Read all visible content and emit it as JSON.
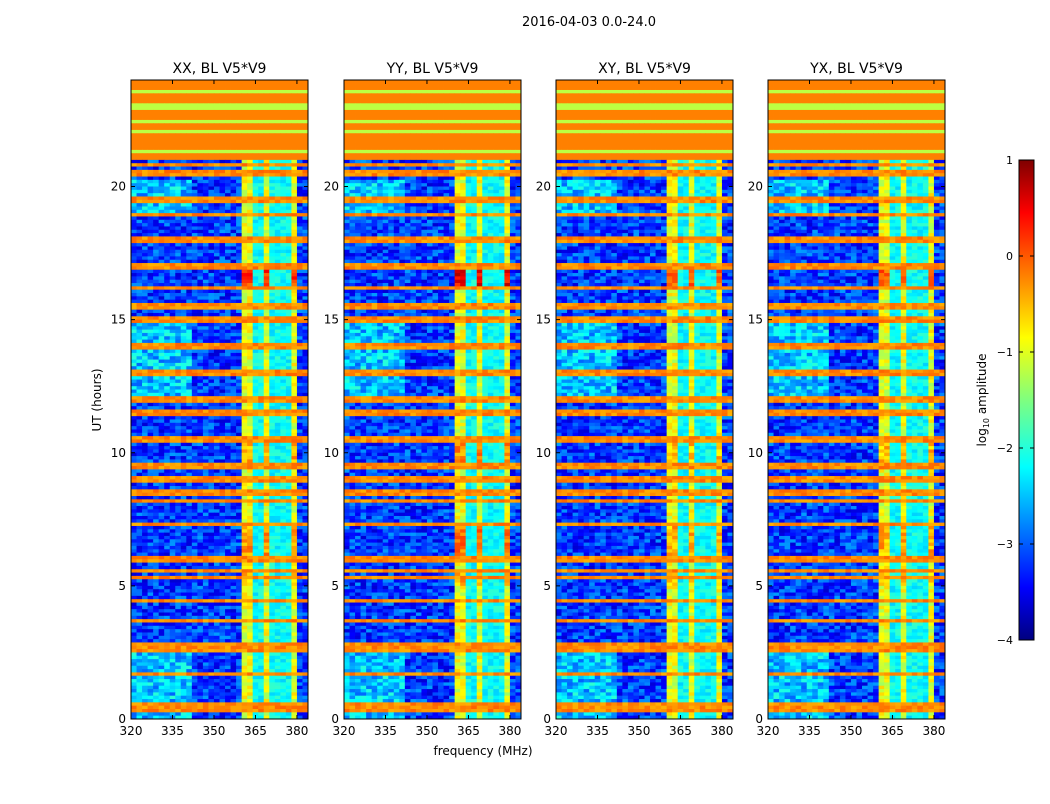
{
  "chart_data": {
    "type": "heatmap",
    "title": "2016-04-03 0.0-24.0",
    "xlabel": "frequency (MHz)",
    "ylabel": "UT (hours)",
    "xlim": [
      320,
      384
    ],
    "ylim": [
      0,
      24
    ],
    "xticks": [
      320,
      335,
      350,
      365,
      380
    ],
    "yticks": [
      0,
      5,
      10,
      15,
      20
    ],
    "colormap": "jet",
    "colorbar": {
      "label_prefix": "log",
      "label_sub": "10",
      "label_suffix": " amplitude",
      "vmin": -4,
      "vmax": 1,
      "ticks": [
        1,
        0,
        -1,
        -2,
        -3,
        -4
      ],
      "tick_labels": [
        "1",
        "0",
        "−1",
        "−2",
        "−3",
        "−4"
      ]
    },
    "panels": [
      {
        "title": "XX, BL V5*V9",
        "event_boost": 0.5
      },
      {
        "title": "YY, BL V5*V9",
        "event_boost": 0.8
      },
      {
        "title": "XY, BL V5*V9",
        "event_boost": 0.3
      },
      {
        "title": "YX, BL V5*V9",
        "event_boost": 0.35
      }
    ],
    "model": {
      "background_log_amplitude": -3.1,
      "signal_band_mhz": [
        360,
        379
      ],
      "signal_band_log_amplitude": -1.0,
      "signal_band_gaps_mhz": [
        [
          366,
          367
        ],
        [
          371,
          372
        ],
        [
          375.5,
          376.5
        ]
      ],
      "flagged_hours": [
        21,
        24
      ],
      "flagged_log_amplitude": -0.25,
      "flagged_green_rows_hours": [
        20.3,
        21.3,
        22.1,
        22.4,
        23.0,
        23.6
      ],
      "rfi_rows_hours": [
        0.3,
        0.5,
        1.7,
        2.6,
        2.75,
        3.7,
        4.4,
        5.3,
        5.55,
        6.0,
        7.3,
        8.2,
        8.5,
        9.0,
        9.5,
        10.5,
        11.5,
        12.0,
        13.0,
        14.0,
        15.0,
        15.5,
        16.2,
        17.0,
        18.0,
        18.9,
        19.5,
        20.5,
        20.8
      ],
      "events": [
        {
          "hours": [
            16.3,
            17.0
          ],
          "delta": 1.1
        },
        {
          "hours": [
            6.0,
            7.2
          ],
          "delta": 0.6
        },
        {
          "hours": [
            9.5,
            10.5
          ],
          "delta": 0.5
        },
        {
          "hours": [
            5.0,
            5.6
          ],
          "delta": 0.4
        }
      ]
    }
  }
}
